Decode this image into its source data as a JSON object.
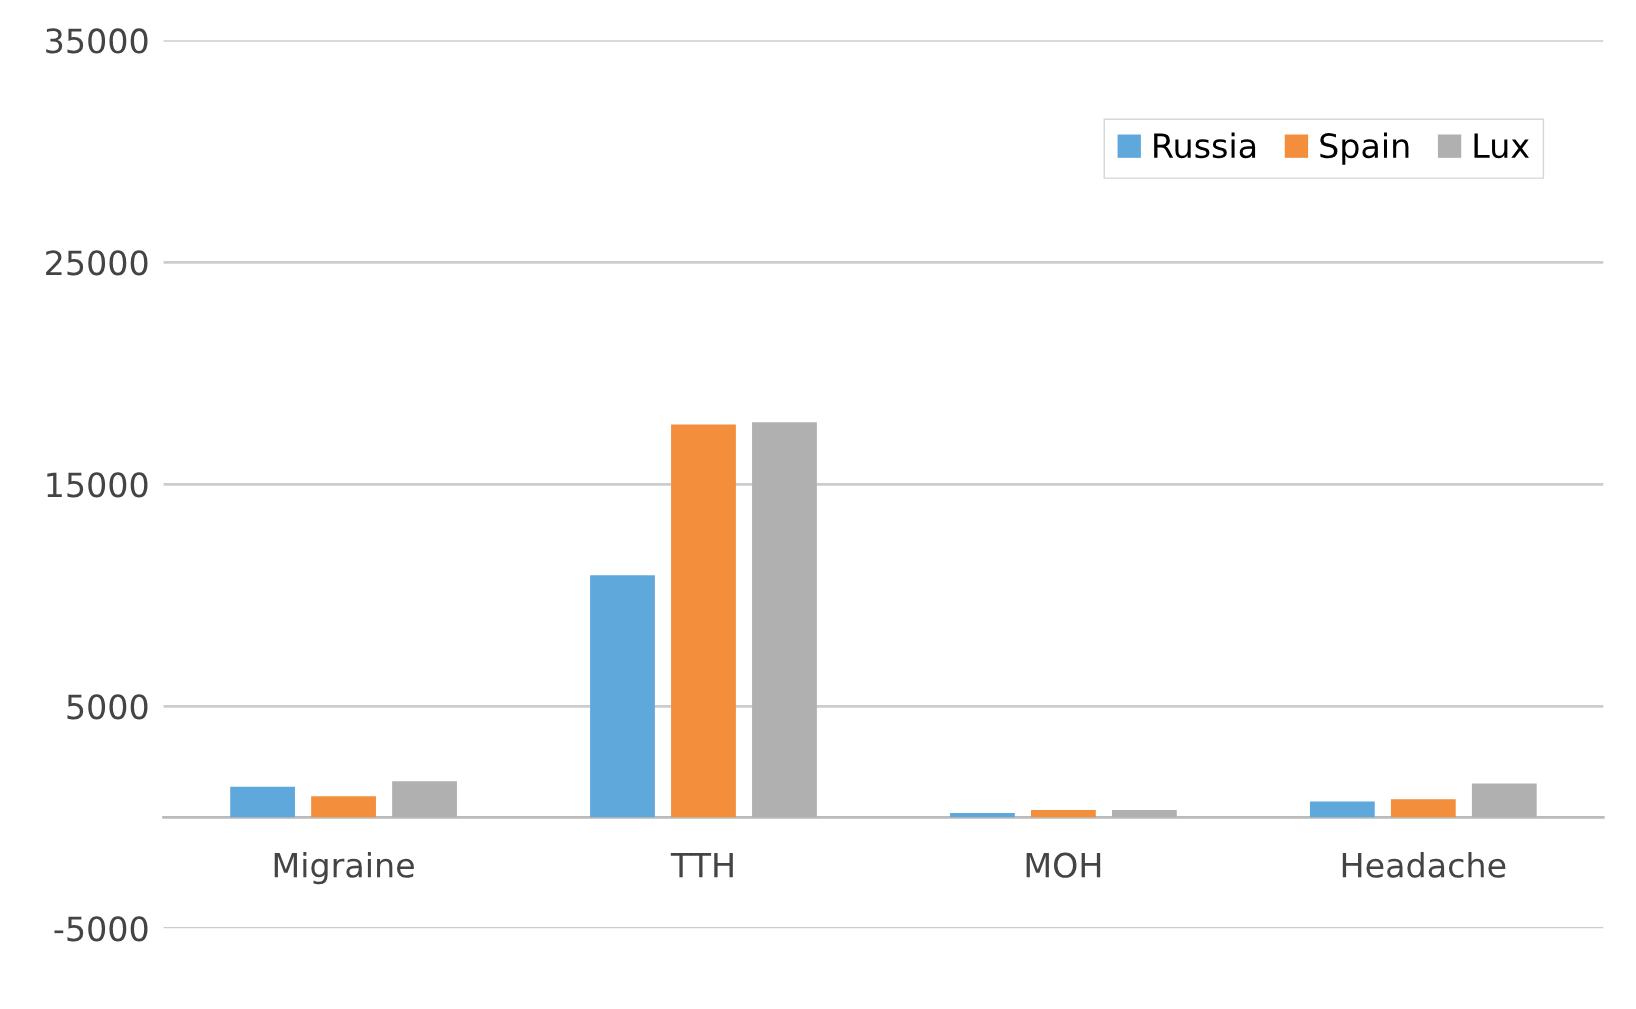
{
  "chart_data": {
    "type": "bar",
    "categories": [
      "Migraine",
      "TTH",
      "MOH",
      "Headache"
    ],
    "series": [
      {
        "name": "Russia",
        "color": "#5fa8dc",
        "values": [
          1380,
          10900,
          190,
          710
        ]
      },
      {
        "name": "Spain",
        "color": "#f28e3c",
        "values": [
          950,
          17700,
          330,
          810
        ]
      },
      {
        "name": "Lux",
        "color": "#b0b0b0",
        "values": [
          1620,
          17800,
          330,
          1520
        ]
      }
    ],
    "ylim": [
      -5000,
      35000
    ],
    "yticks": [
      -5000,
      5000,
      15000,
      25000,
      35000
    ],
    "grid": "y",
    "legend": "top right"
  }
}
